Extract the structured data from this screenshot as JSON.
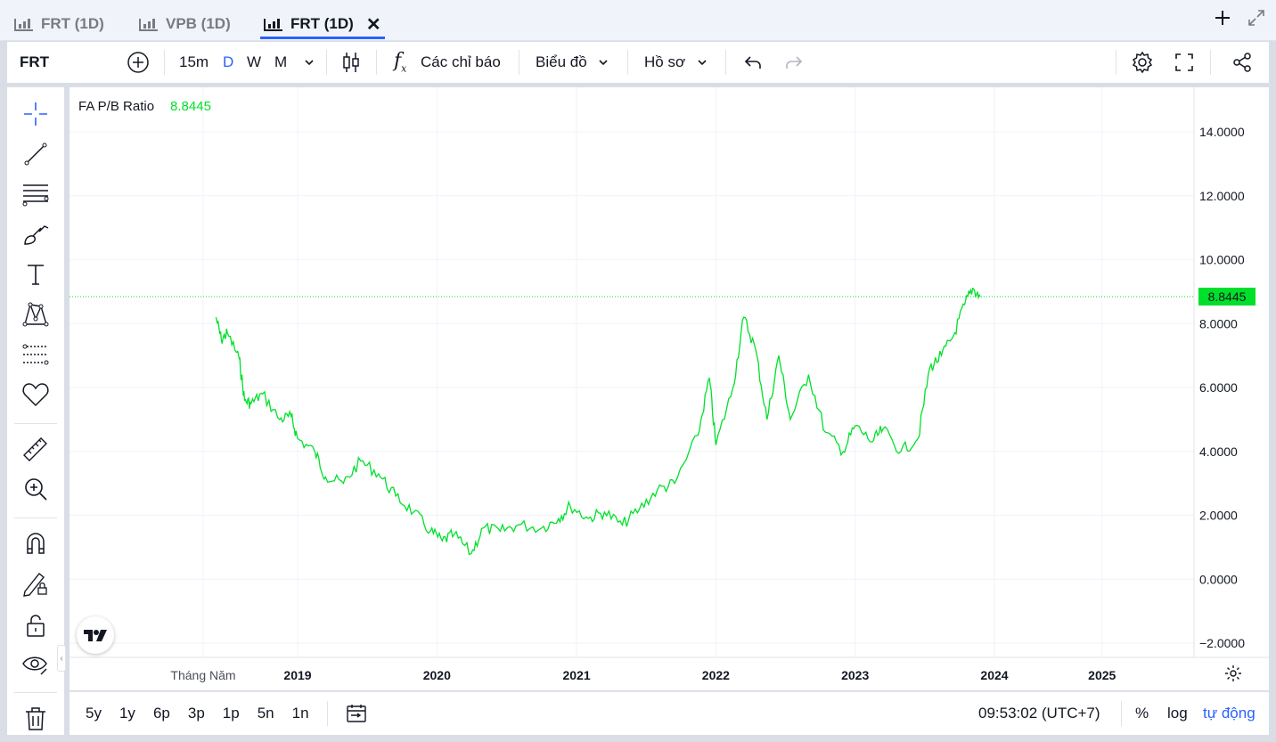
{
  "tabs": [
    {
      "label": "FRT (1D)",
      "active": false
    },
    {
      "label": "VPB (1D)",
      "active": false
    },
    {
      "label": "FRT (1D)",
      "active": true
    }
  ],
  "toolbar": {
    "symbol": "FRT",
    "intervals": [
      "15m",
      "D",
      "W",
      "M"
    ],
    "active_interval": "D",
    "indicators_label": "Các chỉ báo",
    "chart_label": "Biểu đồ",
    "profile_label": "Hồ sơ"
  },
  "legend": {
    "name": "FA P/B Ratio",
    "value": "8.8445"
  },
  "bottom": {
    "ranges": [
      "5y",
      "1y",
      "6p",
      "3p",
      "1p",
      "5n",
      "1n"
    ],
    "time": "09:53:02 (UTC+7)",
    "percent": "%",
    "log": "log",
    "auto": "tự động"
  },
  "colors": {
    "series": "#00e02a",
    "accent": "#2962ff"
  },
  "chart_data": {
    "type": "line",
    "series": [
      {
        "name": "FA P/B Ratio",
        "points": [
          [
            "2018-06-01",
            8.2
          ],
          [
            "2018-06-15",
            7.5
          ],
          [
            "2018-07-01",
            7.7
          ],
          [
            "2018-08-01",
            6.9
          ],
          [
            "2018-08-15",
            5.6
          ],
          [
            "2018-09-01",
            5.5
          ],
          [
            "2018-10-01",
            5.8
          ],
          [
            "2018-11-15",
            5.0
          ],
          [
            "2018-12-15",
            5.1
          ],
          [
            "2019-01-01",
            4.4
          ],
          [
            "2019-02-15",
            4.0
          ],
          [
            "2019-03-15",
            3.2
          ],
          [
            "2019-05-01",
            3.0
          ],
          [
            "2019-06-15",
            3.7
          ],
          [
            "2019-08-01",
            3.3
          ],
          [
            "2019-09-15",
            2.6
          ],
          [
            "2019-11-01",
            2.1
          ],
          [
            "2019-12-15",
            1.5
          ],
          [
            "2020-01-15",
            1.2
          ],
          [
            "2020-02-15",
            1.4
          ],
          [
            "2020-03-31",
            0.8
          ],
          [
            "2020-05-01",
            1.6
          ],
          [
            "2020-06-15",
            1.5
          ],
          [
            "2020-08-01",
            1.7
          ],
          [
            "2020-10-01",
            1.6
          ],
          [
            "2020-11-15",
            1.9
          ],
          [
            "2020-12-15",
            2.3
          ],
          [
            "2021-02-01",
            1.9
          ],
          [
            "2021-03-15",
            2.1
          ],
          [
            "2021-05-01",
            1.7
          ],
          [
            "2021-06-15",
            2.2
          ],
          [
            "2021-08-01",
            2.8
          ],
          [
            "2021-09-15",
            3.0
          ],
          [
            "2021-11-15",
            4.5
          ],
          [
            "2021-12-15",
            6.3
          ],
          [
            "2022-01-01",
            4.2
          ],
          [
            "2022-02-15",
            6.0
          ],
          [
            "2022-03-15",
            8.2
          ],
          [
            "2022-04-15",
            7.2
          ],
          [
            "2022-05-15",
            5.0
          ],
          [
            "2022-06-15",
            7.0
          ],
          [
            "2022-07-15",
            5.0
          ],
          [
            "2022-09-01",
            6.4
          ],
          [
            "2022-10-15",
            4.6
          ],
          [
            "2022-12-01",
            4.0
          ],
          [
            "2023-01-01",
            4.8
          ],
          [
            "2023-02-15",
            4.3
          ],
          [
            "2023-03-15",
            4.7
          ],
          [
            "2023-05-01",
            4.0
          ],
          [
            "2023-06-15",
            4.4
          ],
          [
            "2023-07-15",
            6.6
          ],
          [
            "2023-08-15",
            7.0
          ],
          [
            "2023-09-15",
            7.6
          ],
          [
            "2023-10-15",
            8.6
          ],
          [
            "2023-11-05",
            9.1
          ],
          [
            "2023-11-25",
            8.8445
          ]
        ]
      }
    ],
    "x_ticks": [
      "Tháng Năm",
      "2019",
      "2020",
      "2021",
      "2022",
      "2023",
      "2024",
      "2025"
    ],
    "y_ticks": [
      "14.0000",
      "12.0000",
      "10.0000",
      "8.0000",
      "6.0000",
      "4.0000",
      "2.0000",
      "0.0000",
      "−2.0000"
    ],
    "ylim": [
      -2,
      14
    ],
    "last_value_label": "8.8445",
    "grid": true
  }
}
